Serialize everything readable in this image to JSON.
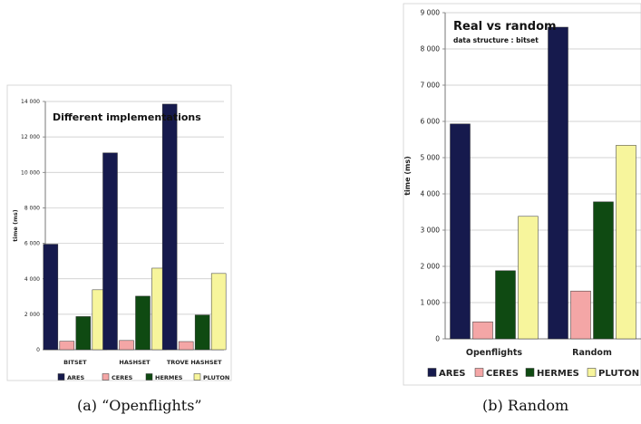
{
  "chart_data": [
    {
      "type": "bar",
      "title": "Different implementations",
      "subtitle": "",
      "ylabel": "time (ms)",
      "xlabel": "",
      "ylim": [
        0,
        14000
      ],
      "yticks": [
        "0",
        "2 000",
        "4 000",
        "6 000",
        "8 000",
        "10 000",
        "12 000",
        "14 000"
      ],
      "categories": [
        "BITSET",
        "HASHSET",
        "TROVE HASHSET"
      ],
      "series": [
        {
          "name": "ARES",
          "color": "#161a4d",
          "values": [
            5950,
            11100,
            13850
          ]
        },
        {
          "name": "CERES",
          "color": "#f4a6a6",
          "values": [
            480,
            520,
            460
          ]
        },
        {
          "name": "HERMES",
          "color": "#0f4a12",
          "values": [
            1870,
            3020,
            1960
          ]
        },
        {
          "name": "PLUTON",
          "color": "#f7f59c",
          "values": [
            3380,
            4600,
            4300
          ]
        }
      ],
      "legend_position": "bottom",
      "caption": "(a) “Openflights”"
    },
    {
      "type": "bar",
      "title": "Real vs random",
      "subtitle": "data structure : bitset",
      "ylabel": "time (ms)",
      "xlabel": "",
      "ylim": [
        0,
        9000
      ],
      "yticks": [
        "0",
        "1 000",
        "2 000",
        "3 000",
        "4 000",
        "5 000",
        "6 000",
        "7 000",
        "8 000",
        "9 000"
      ],
      "categories": [
        "Openflights",
        "Random"
      ],
      "series": [
        {
          "name": "ARES",
          "color": "#161a4d",
          "values": [
            5930,
            8600
          ]
        },
        {
          "name": "CERES",
          "color": "#f4a6a6",
          "values": [
            470,
            1320
          ]
        },
        {
          "name": "HERMES",
          "color": "#0f4a12",
          "values": [
            1880,
            3780
          ]
        },
        {
          "name": "PLUTON",
          "color": "#f7f59c",
          "values": [
            3380,
            5340
          ]
        }
      ],
      "legend_position": "bottom",
      "caption": "(b) Random"
    }
  ]
}
